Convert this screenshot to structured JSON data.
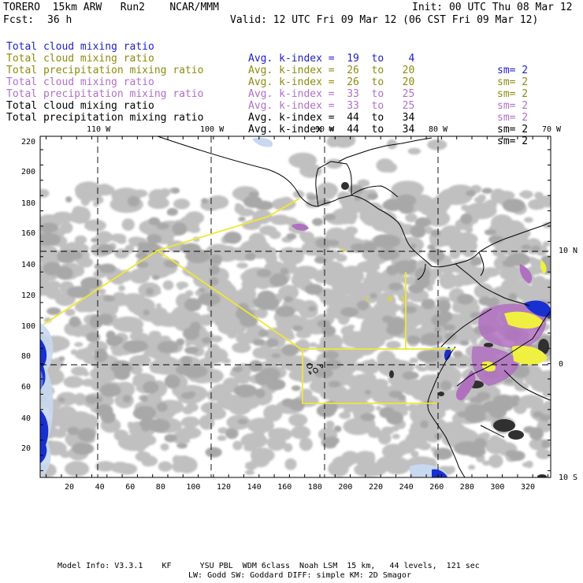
{
  "header": {
    "model_line": "TORERO  15km ARW   Run2    NCAR/MMM",
    "fcst_label": "Fcst:",
    "fcst_value": "36 h",
    "init": "Init: 00 UTC Thu 08 Mar 12",
    "valid": "Valid: 12 UTC Fri 09 Mar 12 (06 CST Fri 09 Mar 12)"
  },
  "legend": [
    {
      "field": "Total cloud mixing ratio",
      "kindex": "Avg. k-index =  19  to    4",
      "sm": "sm= 2",
      "color": "#2020c8"
    },
    {
      "field": "Total cloud mixing ratio",
      "kindex": "Avg. k-index =  26  to   20",
      "sm": "sm= 2",
      "color": "#8c8c10"
    },
    {
      "field": "Total precipitation mixing ratio",
      "kindex": "Avg. k-index =  26  to   20",
      "sm": "sm= 2",
      "color": "#8c8c10"
    },
    {
      "field": "Total cloud mixing ratio",
      "kindex": "Avg. k-index =  33  to   25",
      "sm": "sm= 2",
      "color": "#b070c8"
    },
    {
      "field": "Total precipitation mixing ratio",
      "kindex": "Avg. k-index =  33  to   25",
      "sm": "sm= 2",
      "color": "#b070c8"
    },
    {
      "field": "Total cloud mixing ratio",
      "kindex": "Avg. k-index =  44  to   34",
      "sm": "sm= 2",
      "color": "#000000"
    },
    {
      "field": "Total precipitation mixing ratio",
      "kindex": "Avg. k-index =  44  to   34",
      "sm": "sm= 2",
      "color": "#000000"
    }
  ],
  "map": {
    "lon_labels": [
      "110 W",
      "100 W",
      "90 W",
      "80 W",
      "70 W"
    ],
    "lat_labels": [
      "10 N",
      "0",
      "10 S"
    ],
    "x_ticks": [
      "20",
      "40",
      "60",
      "80",
      "100",
      "120",
      "140",
      "160",
      "180",
      "200",
      "220",
      "240",
      "260",
      "280",
      "300",
      "320"
    ],
    "y_ticks": [
      "220",
      "200",
      "180",
      "160",
      "140",
      "120",
      "100",
      "80",
      "60",
      "40",
      "20"
    ],
    "colors": {
      "cloud_light": "#c0c0c0",
      "cloud_mid": "#a8a8a8",
      "cloud_dark": "#303030",
      "ice_light": "#c8d8f0",
      "ice_blue": "#1830d0",
      "purple": "#b070c0",
      "yellow": "#f0f040",
      "box_line": "#f0e830"
    },
    "box_markers": [
      "T",
      "C",
      "N",
      "1"
    ]
  },
  "footer": {
    "line1": "Model Info: V3.3.1    KF      YSU PBL  WDM 6class  Noah LSM  15 km,   44 levels,  121 sec",
    "line2": "LW: Godd SW: Goddard DIFF: simple KM: 2D Smagor"
  }
}
